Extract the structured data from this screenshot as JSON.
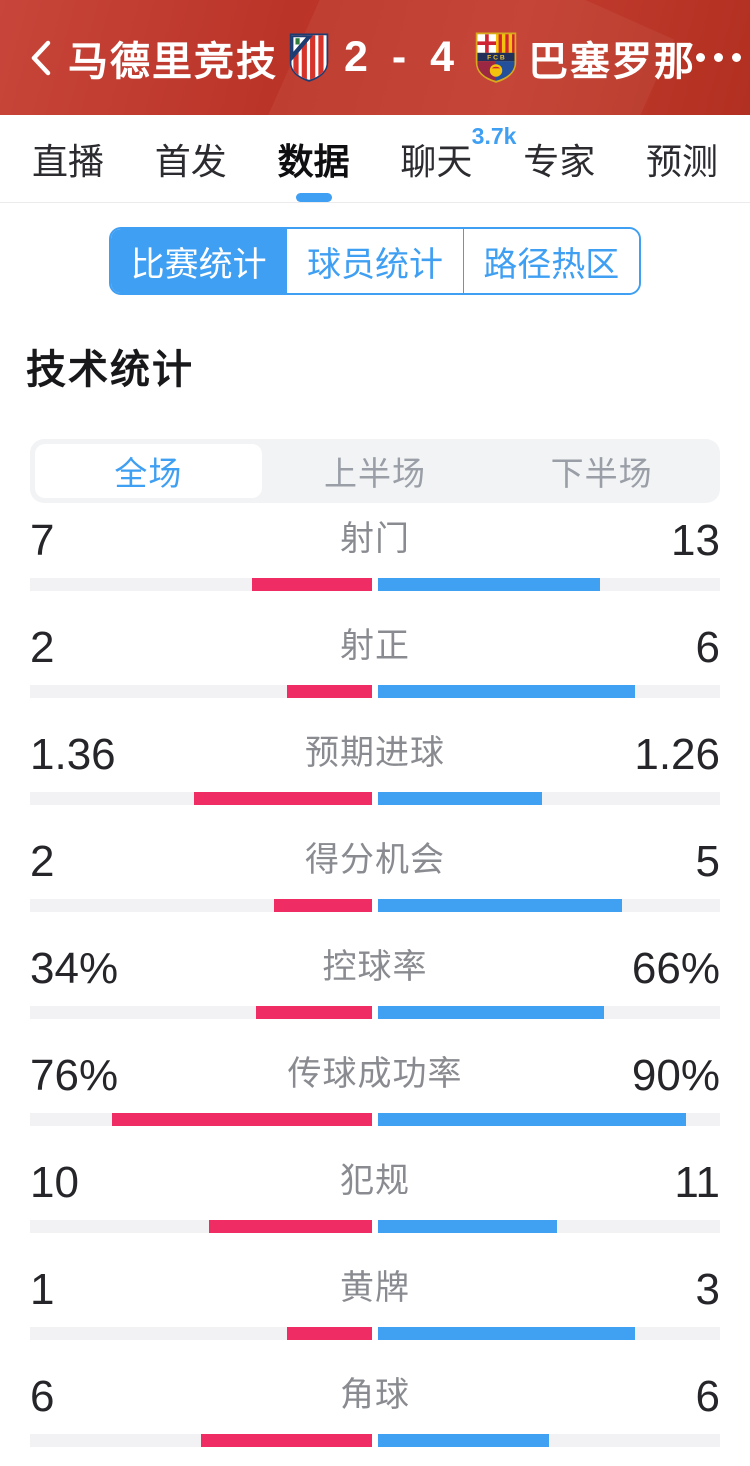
{
  "header": {
    "home_team": "马德里竞技",
    "score": "2 - 4",
    "away_team": "巴塞罗那"
  },
  "tabs": [
    {
      "name": "live",
      "label": "直播",
      "active": false
    },
    {
      "name": "lineup",
      "label": "首发",
      "active": false
    },
    {
      "name": "data",
      "label": "数据",
      "active": true
    },
    {
      "name": "chat",
      "label": "聊天",
      "active": false,
      "badge": "3.7k"
    },
    {
      "name": "expert",
      "label": "专家",
      "active": false
    },
    {
      "name": "prediction",
      "label": "预测",
      "active": false
    }
  ],
  "stat_categories": [
    {
      "name": "match-stats",
      "label": "比赛统计",
      "active": true
    },
    {
      "name": "player-stats",
      "label": "球员统计",
      "active": false
    },
    {
      "name": "heat-zones",
      "label": "路径热区",
      "active": false
    }
  ],
  "section_title": "技术统计",
  "periods": [
    {
      "name": "full-match",
      "label": "全场",
      "active": true
    },
    {
      "name": "first-half",
      "label": "上半场",
      "active": false
    },
    {
      "name": "second-half",
      "label": "下半场",
      "active": false
    }
  ],
  "chart_data": {
    "type": "bar",
    "title": "技术统计 (全场)",
    "legend": [
      "马德里竞技",
      "巴塞罗那"
    ],
    "note": "paired horizontal bars from center; count rows scaled by share of total, percent rows by percent value",
    "stats": [
      {
        "name": "shots",
        "label": "射门",
        "home": "7",
        "away": "13"
      },
      {
        "name": "shots-on-target",
        "label": "射正",
        "home": "2",
        "away": "6"
      },
      {
        "name": "expected-goals",
        "label": "预期进球",
        "home": "1.36",
        "away": "1.26"
      },
      {
        "name": "big-chances",
        "label": "得分机会",
        "home": "2",
        "away": "5"
      },
      {
        "name": "possession",
        "label": "控球率",
        "home": "34%",
        "away": "66%"
      },
      {
        "name": "pass-accuracy",
        "label": "传球成功率",
        "home": "76%",
        "away": "90%"
      },
      {
        "name": "fouls",
        "label": "犯规",
        "home": "10",
        "away": "11"
      },
      {
        "name": "yellow-cards",
        "label": "黄牌",
        "home": "1",
        "away": "3"
      },
      {
        "name": "corners",
        "label": "角球",
        "home": "6",
        "away": "6"
      }
    ]
  },
  "colors": {
    "header_background": "#bc3529",
    "accent_blue": "#3f9ff2",
    "home_bar": "#f02c64",
    "away_bar": "#40a0f2"
  }
}
